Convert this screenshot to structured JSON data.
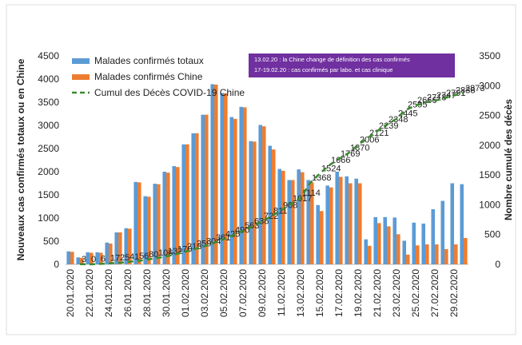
{
  "chart_data": {
    "type": "bar_line",
    "y_label": "Nouveaux cas confirmés totaux ou en Chine",
    "y2_label": "Nombre cumulé des décès",
    "annotations": [
      "13.02.20 : la Chine change de définition  des cas confirmés",
      "17-19.02.20  :  cas confirmés par labo. et cas clinique"
    ],
    "categories": [
      "20.01.2020",
      null,
      "22.01.2020",
      null,
      "24.01.2020",
      null,
      "26.01.2020",
      null,
      "28.01.2020",
      null,
      "30.01.2020",
      null,
      "01.02.2020",
      null,
      "03.02.2020",
      null,
      "05.02.2020",
      null,
      "07.02.2020",
      null,
      "09.02.2020",
      null,
      "11.02.2020",
      null,
      "13.02.2020",
      null,
      "15.02.2020",
      null,
      "17.02.2020",
      null,
      "19.02.2020",
      null,
      "21.02.2020",
      null,
      "23.02.2020",
      null,
      "25.02.2020",
      null,
      "27.02.2020",
      null,
      "29.02.2020",
      null
    ],
    "series": [
      {
        "name": "Malades confirmés totaux",
        "color": "#5b9bd5",
        "kind": "bar",
        "values": [
          280,
          150,
          260,
          260,
          470,
          690,
          780,
          1780,
          1470,
          1740,
          2000,
          2120,
          2590,
          2830,
          3230,
          3890,
          3700,
          3180,
          3400,
          2660,
          3010,
          2560,
          2060,
          1820,
          2050,
          1820,
          1280,
          1700,
          2000,
          1900,
          1850,
          540,
          1020,
          1020,
          1010,
          510,
          900,
          880,
          1190,
          1370,
          1750,
          1730
        ]
      },
      {
        "name": "Malades confirmés Chine",
        "color": "#ed7d31",
        "kind": "bar",
        "values": [
          270,
          140,
          250,
          250,
          450,
          690,
          770,
          1770,
          1460,
          1730,
          1980,
          2100,
          2590,
          2830,
          3230,
          3880,
          3690,
          3140,
          3390,
          2650,
          2980,
          2480,
          2020,
          1820,
          1990,
          1770,
          1150,
          1660,
          1890,
          1750,
          1750,
          400,
          890,
          820,
          650,
          210,
          410,
          430,
          430,
          330,
          430,
          570
        ]
      },
      {
        "name": "Cumul des Décès COVID-19 Chine",
        "color": "#3a8a2e",
        "kind": "line",
        "axis": "y2",
        "values": [
          null,
          3,
          0,
          6,
          17,
          25,
          41,
          56,
          80,
          106,
          132,
          170,
          213,
          259,
          304,
          361,
          425,
          490,
          563,
          636,
          722,
          811,
          908,
          1017,
          1114,
          1368,
          1524,
          1666,
          1769,
          1870,
          2006,
          2121,
          2239,
          2348,
          2445,
          2595,
          2666,
          2718,
          2747,
          2791,
          2838,
          2873
        ]
      }
    ],
    "ylim": [
      0,
      4500
    ],
    "yticks": [
      0,
      500,
      1000,
      1500,
      2000,
      2500,
      3000,
      3500,
      4000,
      4500
    ],
    "y2lim": [
      0,
      3500
    ],
    "y2ticks": [
      0,
      500,
      1000,
      1500,
      2000,
      2500,
      3000,
      3500
    ],
    "legend": "top-left",
    "grid": false
  }
}
